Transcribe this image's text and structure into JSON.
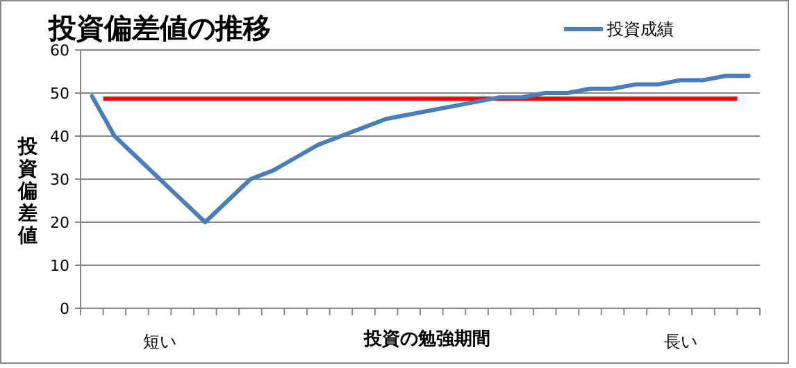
{
  "chart_data": {
    "type": "line",
    "title": "投資偏差値の推移",
    "xlabel": "投資の勉強期間",
    "ylabel": "投資偏差値",
    "categories": [
      null,
      null,
      null,
      "短い",
      null,
      null,
      null,
      null,
      null,
      null,
      null,
      null,
      null,
      null,
      null,
      null,
      null,
      null,
      null,
      null,
      null,
      null,
      null,
      null,
      null,
      null,
      "長い",
      null,
      null,
      null
    ],
    "series": [
      {
        "name": "投資成績",
        "color": "#4a7ebb",
        "values": [
          49.3,
          40,
          35,
          30,
          25,
          20,
          25,
          30,
          32,
          35,
          38,
          40,
          42,
          44,
          45,
          46,
          47,
          48,
          49,
          49,
          50,
          50,
          51,
          51,
          52,
          52,
          53,
          53,
          54,
          54
        ]
      }
    ],
    "ylim": [
      0,
      60
    ],
    "yticks": [
      0,
      10,
      20,
      30,
      40,
      50,
      60
    ],
    "grid": "y",
    "legend": "top right",
    "marker": "none",
    "line_style": "solid",
    "ref_lines": [
      {
        "axis": "y",
        "value": 48.7,
        "color": "#ff0000"
      }
    ]
  }
}
